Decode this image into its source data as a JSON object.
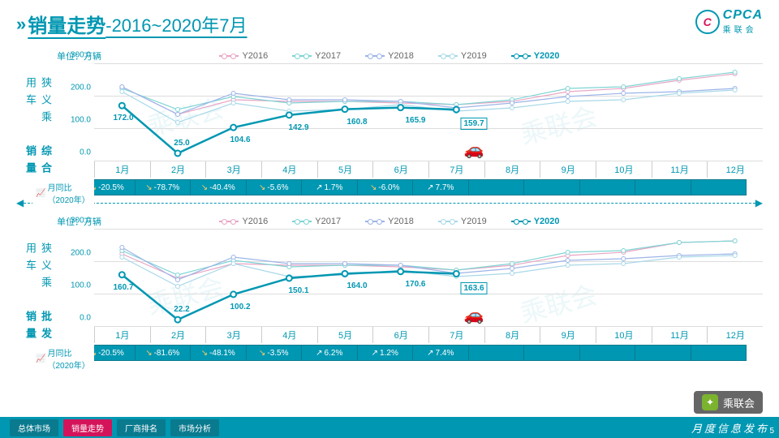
{
  "title": {
    "main": "销量走势",
    "sub": "-2016~2020年7月"
  },
  "logo": {
    "cpca": "CPCA",
    "cn": "乘联会"
  },
  "unit_label": "单位：万辆",
  "side_label": "狭义乘用车",
  "months": [
    "1月",
    "2月",
    "3月",
    "4月",
    "5月",
    "6月",
    "7月",
    "8月",
    "9月",
    "10月",
    "11月",
    "12月"
  ],
  "legend": [
    {
      "name": "Y2016",
      "color": "#e8a5c4"
    },
    {
      "name": "Y2017",
      "color": "#7fd4d4"
    },
    {
      "name": "Y2018",
      "color": "#9db4e8"
    },
    {
      "name": "Y2019",
      "color": "#a8d8e8"
    },
    {
      "name": "Y2020",
      "color": "#0097b2"
    }
  ],
  "ylim": [
    0,
    300
  ],
  "yticks": [
    0,
    100,
    200,
    300
  ],
  "charts": [
    {
      "vtitle": "综合销量",
      "series": {
        "Y2016": [
          230,
          145,
          190,
          185,
          185,
          180,
          175,
          185,
          215,
          225,
          250,
          270
        ],
        "Y2017": [
          225,
          160,
          200,
          180,
          185,
          185,
          175,
          190,
          225,
          230,
          255,
          275
        ],
        "Y2018": [
          230,
          145,
          210,
          190,
          190,
          185,
          165,
          180,
          200,
          210,
          215,
          225
        ],
        "Y2019": [
          215,
          120,
          180,
          155,
          160,
          175,
          155,
          165,
          185,
          190,
          210,
          220
        ],
        "Y2020": [
          172.0,
          25.0,
          104.6,
          142.9,
          160.8,
          165.9,
          159.7
        ]
      },
      "labels_2020": [
        "172.0",
        "25.0",
        "104.6",
        "142.9",
        "160.8",
        "165.9",
        "159.7"
      ],
      "yoy": [
        {
          "v": "-20.5%",
          "d": "down"
        },
        {
          "v": "-78.7%",
          "d": "down"
        },
        {
          "v": "-40.4%",
          "d": "down"
        },
        {
          "v": "-5.6%",
          "d": "down"
        },
        {
          "v": "1.7%",
          "d": "up"
        },
        {
          "v": "-6.0%",
          "d": "down"
        },
        {
          "v": "7.7%",
          "d": "up"
        }
      ]
    },
    {
      "vtitle": "批发销量",
      "series": {
        "Y2016": [
          225,
          150,
          195,
          190,
          190,
          185,
          175,
          190,
          220,
          230,
          260,
          265
        ],
        "Y2017": [
          235,
          160,
          205,
          185,
          190,
          190,
          175,
          195,
          230,
          235,
          260,
          265
        ],
        "Y2018": [
          245,
          145,
          215,
          195,
          195,
          190,
          165,
          180,
          205,
          210,
          220,
          225
        ],
        "Y2019": [
          215,
          125,
          195,
          155,
          160,
          175,
          155,
          165,
          190,
          195,
          215,
          220
        ],
        "Y2020": [
          160.7,
          22.2,
          100.2,
          150.1,
          164.0,
          170.6,
          163.6
        ]
      },
      "labels_2020": [
        "160.7",
        "22.2",
        "100.2",
        "150.1",
        "164.0",
        "170.6",
        "163.6"
      ],
      "yoy": [
        {
          "v": "-20.5%",
          "d": "down"
        },
        {
          "v": "-81.6%",
          "d": "down"
        },
        {
          "v": "-48.1%",
          "d": "down"
        },
        {
          "v": "-3.5%",
          "d": "down"
        },
        {
          "v": "6.2%",
          "d": "up"
        },
        {
          "v": "1.2%",
          "d": "up"
        },
        {
          "v": "7.4%",
          "d": "up"
        }
      ]
    }
  ],
  "yoy_label": "月同比（2020年）",
  "footer": {
    "tabs": [
      "总体市场",
      "销量走势",
      "厂商排名",
      "市场分析"
    ],
    "active": 1,
    "right": "月度信息发布",
    "page": "5"
  },
  "wechat": "乘联会",
  "colors": {
    "primary": "#0097b2",
    "bg": "#ffffff",
    "grid": "#dddddd"
  }
}
